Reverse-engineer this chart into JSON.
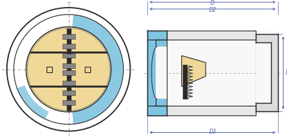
{
  "bg_color": "#ffffff",
  "body_blue": "#7fc4e0",
  "body_blue_light": "#b8dff0",
  "disk_beige": "#f0d898",
  "dark": "#2a2a2a",
  "gray_medium": "#888888",
  "gray_light": "#cccccc",
  "gray_dark": "#555555",
  "dim_line": "#5566aa",
  "dashed": "#aaaaaa",
  "spring_col": "#444444",
  "labels": {
    "D3": "D3",
    "D2": "D2",
    "D": "D",
    "L": "L"
  }
}
